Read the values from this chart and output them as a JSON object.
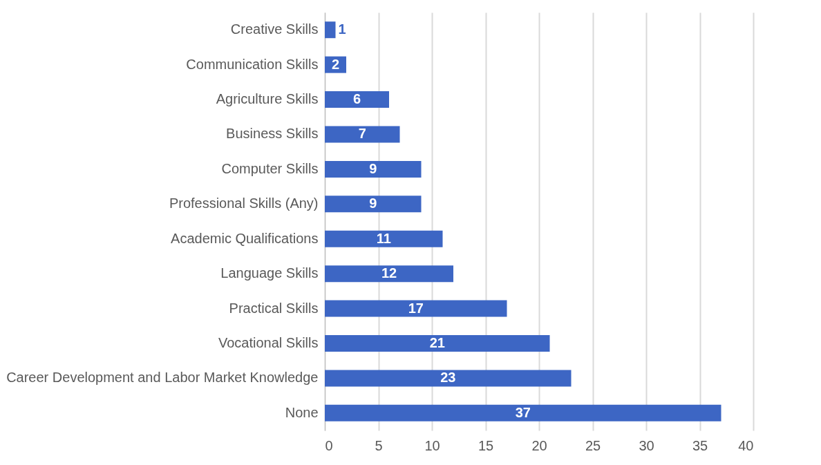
{
  "chart_data": {
    "type": "bar",
    "orientation": "horizontal",
    "categories": [
      "Creative Skills",
      "Communication Skills",
      "Agriculture Skills",
      "Business Skills",
      "Computer Skills",
      "Professional Skills (Any)",
      "Academic Qualifications",
      "Language Skills",
      "Practical Skills",
      "Vocational Skills",
      "Career Development and Labor Market Knowledge",
      "None"
    ],
    "values": [
      1,
      2,
      6,
      7,
      9,
      9,
      11,
      12,
      17,
      21,
      23,
      37
    ],
    "color": "#3d66c4",
    "xlim": [
      0,
      40
    ],
    "xticks": [
      0,
      5,
      10,
      15,
      20,
      25,
      30,
      35,
      40
    ],
    "grid": "x",
    "data_labels": true
  }
}
